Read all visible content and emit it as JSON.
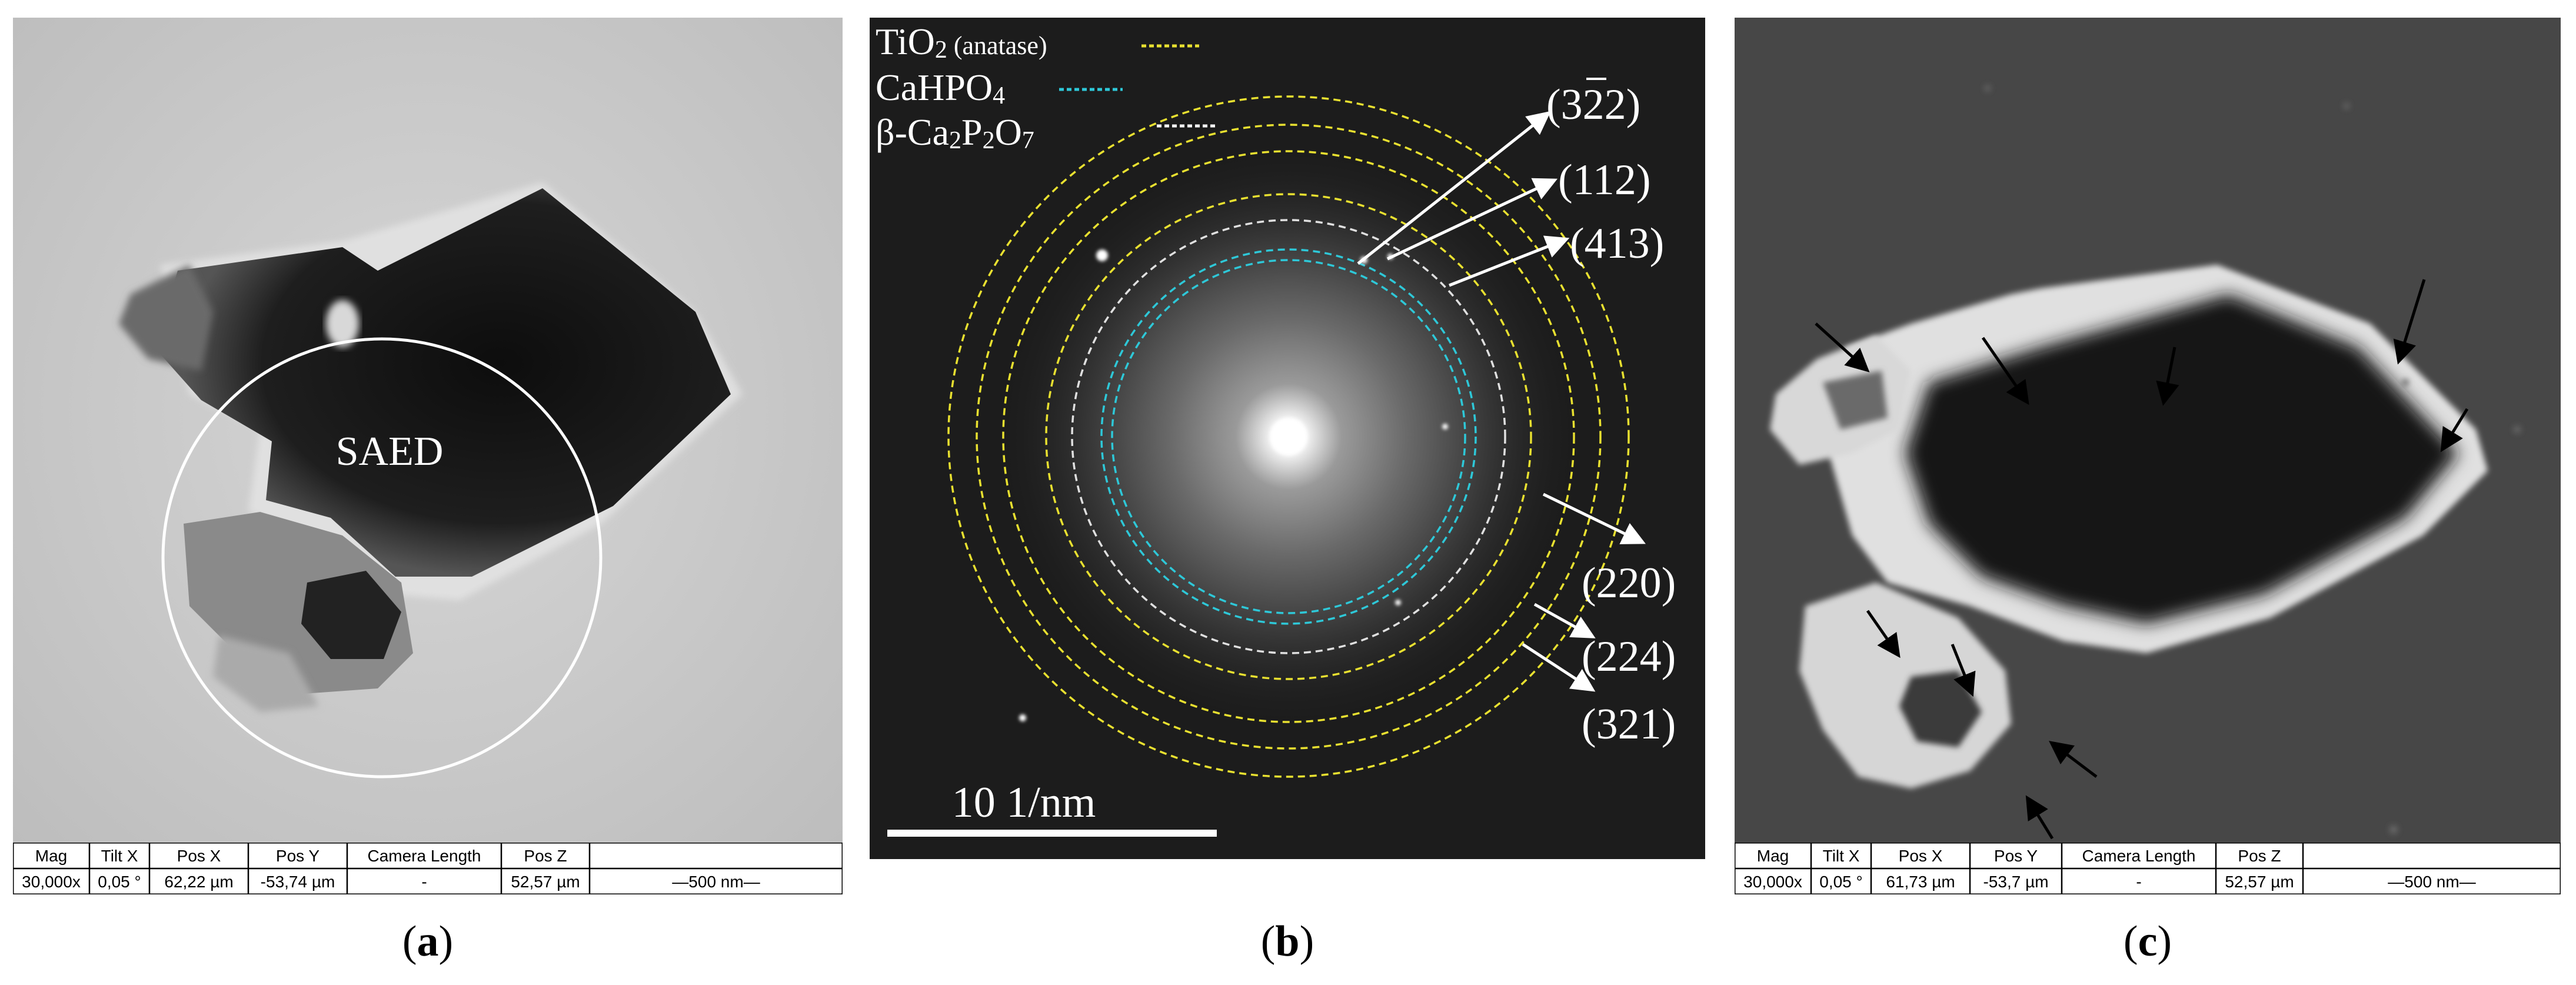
{
  "panels": {
    "a": {
      "caption_open": "(",
      "caption_letter": "a",
      "caption_close": ")",
      "saed_label": "SAED",
      "info": {
        "headers": [
          "Mag",
          "Tilt X",
          "Pos X",
          "Pos Y",
          "Camera Length",
          "Pos Z"
        ],
        "values": [
          "30,000x",
          "0,05 °",
          "62,22 µm",
          "-53,74 µm",
          "-",
          "52,57 µm"
        ],
        "scale": "—500 nm—"
      }
    },
    "b": {
      "caption_open": "(",
      "caption_letter": "b",
      "caption_close": ")",
      "legend": [
        {
          "main": "TiO2",
          "suffix": " (anatase)",
          "color": "#e8e030"
        },
        {
          "main": "CaHPO4",
          "suffix": "",
          "color": "#2ec8d8"
        },
        {
          "main": "β-Ca2P2O7",
          "suffix": "",
          "color": "#ffffff"
        }
      ],
      "reflections": [
        "(322)",
        "(112)",
        "(413)",
        "(220)",
        "(224)",
        "(321)"
      ],
      "scale_bar": "10 1/nm"
    },
    "c": {
      "caption_open": "(",
      "caption_letter": "c",
      "caption_close": ")",
      "info": {
        "headers": [
          "Mag",
          "Tilt X",
          "Pos X",
          "Pos Y",
          "Camera Length",
          "Pos Z"
        ],
        "values": [
          "30,000x",
          "0,05 °",
          "61,73 µm",
          "-53,7 µm",
          "-",
          "52,57 µm"
        ],
        "scale": "—500 nm—"
      }
    }
  }
}
